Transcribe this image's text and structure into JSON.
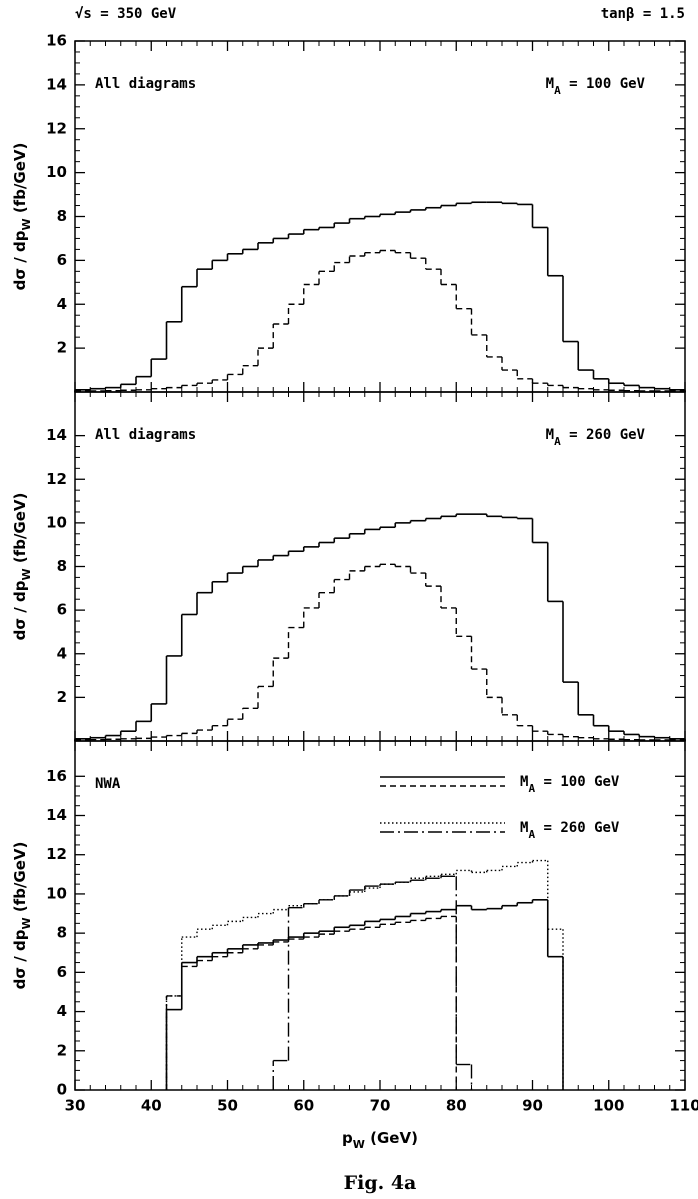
{
  "header": {
    "left": "√s =  350 GeV",
    "right": "tanβ = 1.5"
  },
  "caption": "Fig. 4a",
  "chart_data": [
    {
      "type": "histogram",
      "annotations": [
        {
          "text": "All diagrams"
        },
        {
          "parts": [
            "M",
            "A",
            " = 100 GeV"
          ]
        }
      ],
      "y_label": [
        "dσ / dp",
        "W",
        " (fb/GeV)"
      ],
      "bins": [
        30,
        32,
        34,
        36,
        38,
        40,
        42,
        44,
        46,
        48,
        50,
        52,
        54,
        56,
        58,
        60,
        62,
        64,
        66,
        68,
        70,
        72,
        74,
        76,
        78,
        80,
        82,
        84,
        86,
        88,
        90,
        92,
        94,
        96,
        98,
        100,
        102,
        104,
        106,
        108,
        110
      ],
      "xlim": [
        30,
        110
      ],
      "xticks": [
        30,
        40,
        50,
        60,
        70,
        80,
        90,
        100,
        110
      ],
      "ylim": [
        0,
        16
      ],
      "yticks": [
        2,
        4,
        6,
        8,
        10,
        12,
        14,
        16
      ],
      "series": [
        {
          "style": "solid",
          "color": "#000",
          "values": [
            0.1,
            0.15,
            0.2,
            0.35,
            0.7,
            1.5,
            3.2,
            4.8,
            5.6,
            6.0,
            6.3,
            6.5,
            6.8,
            7.0,
            7.2,
            7.4,
            7.5,
            7.7,
            7.9,
            8.0,
            8.1,
            8.2,
            8.3,
            8.4,
            8.5,
            8.6,
            8.65,
            8.65,
            8.6,
            8.55,
            7.5,
            5.3,
            2.3,
            1.0,
            0.6,
            0.4,
            0.3,
            0.2,
            0.15,
            0.1
          ]
        },
        {
          "style": "dashed",
          "color": "#000",
          "values": [
            0.05,
            0.05,
            0.06,
            0.08,
            0.1,
            0.15,
            0.2,
            0.3,
            0.4,
            0.55,
            0.8,
            1.2,
            2.0,
            3.1,
            4.0,
            4.9,
            5.5,
            5.9,
            6.2,
            6.35,
            6.45,
            6.35,
            6.1,
            5.6,
            4.9,
            3.8,
            2.6,
            1.6,
            1.0,
            0.6,
            0.4,
            0.3,
            0.2,
            0.15,
            0.1,
            0.08,
            0.06,
            0.05,
            0.05,
            0.05
          ]
        }
      ]
    },
    {
      "type": "histogram",
      "annotations": [
        {
          "text": "All diagrams"
        },
        {
          "parts": [
            "M",
            "A",
            " = 260 GeV"
          ]
        }
      ],
      "y_label": [
        "dσ / dp",
        "W",
        " (fb/GeV)"
      ],
      "bins": [
        30,
        32,
        34,
        36,
        38,
        40,
        42,
        44,
        46,
        48,
        50,
        52,
        54,
        56,
        58,
        60,
        62,
        64,
        66,
        68,
        70,
        72,
        74,
        76,
        78,
        80,
        82,
        84,
        86,
        88,
        90,
        92,
        94,
        96,
        98,
        100,
        102,
        104,
        106,
        108,
        110
      ],
      "xlim": [
        30,
        110
      ],
      "xticks": [
        30,
        40,
        50,
        60,
        70,
        80,
        90,
        100,
        110
      ],
      "ylim": [
        0,
        16
      ],
      "yticks": [
        2,
        4,
        6,
        8,
        10,
        12,
        14
      ],
      "series": [
        {
          "style": "solid",
          "color": "#000",
          "values": [
            0.1,
            0.15,
            0.25,
            0.45,
            0.9,
            1.7,
            3.9,
            5.8,
            6.8,
            7.3,
            7.7,
            8.0,
            8.3,
            8.5,
            8.7,
            8.9,
            9.1,
            9.3,
            9.5,
            9.7,
            9.8,
            10.0,
            10.1,
            10.2,
            10.3,
            10.4,
            10.4,
            10.3,
            10.25,
            10.2,
            9.1,
            6.4,
            2.7,
            1.2,
            0.7,
            0.45,
            0.3,
            0.2,
            0.15,
            0.1
          ]
        },
        {
          "style": "dashed",
          "color": "#000",
          "values": [
            0.05,
            0.06,
            0.08,
            0.1,
            0.12,
            0.18,
            0.25,
            0.35,
            0.5,
            0.7,
            1.0,
            1.5,
            2.5,
            3.8,
            5.2,
            6.1,
            6.8,
            7.4,
            7.8,
            8.0,
            8.1,
            8.0,
            7.7,
            7.1,
            6.1,
            4.8,
            3.3,
            2.0,
            1.2,
            0.7,
            0.45,
            0.3,
            0.2,
            0.15,
            0.1,
            0.08,
            0.06,
            0.05,
            0.05,
            0.05
          ]
        }
      ]
    },
    {
      "type": "histogram",
      "annotations": [
        {
          "text": "NWA"
        }
      ],
      "y_label": [
        "dσ / dp",
        "W",
        " (fb/GeV)"
      ],
      "x_label": [
        "p",
        "W",
        " (GeV)"
      ],
      "bins": [
        30,
        32,
        34,
        36,
        38,
        40,
        42,
        44,
        46,
        48,
        50,
        52,
        54,
        56,
        58,
        60,
        62,
        64,
        66,
        68,
        70,
        72,
        74,
        76,
        78,
        80,
        82,
        84,
        86,
        88,
        90,
        92,
        94,
        96,
        98,
        100,
        102,
        104,
        106,
        108,
        110
      ],
      "xlim": [
        30,
        110
      ],
      "xticks": [
        30,
        40,
        50,
        60,
        70,
        80,
        90,
        100,
        110
      ],
      "ylim": [
        0,
        17.8
      ],
      "yticks": [
        0,
        2,
        4,
        6,
        8,
        10,
        12,
        14,
        16
      ],
      "legend": [
        {
          "parts": [
            "M",
            "A",
            " = 100 GeV"
          ],
          "series": [
            0,
            1
          ]
        },
        {
          "parts": [
            "M",
            "A",
            " = 260 GeV"
          ],
          "series": [
            2,
            3
          ]
        }
      ],
      "series": [
        {
          "style": "solid",
          "color": "#000",
          "values": [
            null,
            null,
            null,
            null,
            null,
            null,
            4.1,
            6.5,
            6.8,
            7.0,
            7.2,
            7.4,
            7.5,
            7.65,
            7.8,
            8.0,
            8.1,
            8.3,
            8.4,
            8.6,
            8.7,
            8.85,
            9.0,
            9.1,
            9.2,
            9.4,
            9.2,
            9.25,
            9.4,
            9.55,
            9.7,
            6.8,
            null,
            null,
            null,
            null,
            null,
            null,
            null,
            null
          ]
        },
        {
          "style": "dashed",
          "color": "#000",
          "values": [
            null,
            null,
            null,
            null,
            null,
            null,
            4.8,
            6.3,
            6.6,
            6.8,
            7.0,
            7.2,
            7.4,
            7.55,
            7.7,
            7.8,
            7.95,
            8.1,
            8.2,
            8.3,
            8.45,
            8.55,
            8.65,
            8.75,
            8.85,
            null,
            null,
            null,
            null,
            null,
            null,
            null,
            null,
            null,
            null,
            null,
            null,
            null,
            null,
            null
          ]
        },
        {
          "style": "dotted",
          "color": "#000",
          "values": [
            null,
            null,
            null,
            null,
            null,
            null,
            4.8,
            7.8,
            8.2,
            8.4,
            8.6,
            8.8,
            9.0,
            9.2,
            9.4,
            9.5,
            9.7,
            9.9,
            10.1,
            10.3,
            10.5,
            10.6,
            10.8,
            10.9,
            11.0,
            11.2,
            11.1,
            11.2,
            11.4,
            11.6,
            11.7,
            8.2,
            null,
            null,
            null,
            null,
            null,
            null,
            null,
            null
          ]
        },
        {
          "style": "dashdot",
          "color": "#000",
          "values": [
            null,
            null,
            null,
            null,
            null,
            null,
            null,
            null,
            null,
            null,
            null,
            null,
            null,
            1.5,
            9.3,
            9.5,
            9.7,
            9.9,
            10.2,
            10.4,
            10.5,
            10.6,
            10.7,
            10.8,
            10.9,
            1.3,
            null,
            null,
            null,
            null,
            null,
            null,
            null,
            null,
            null,
            null,
            null,
            null,
            null,
            null
          ]
        }
      ]
    }
  ]
}
